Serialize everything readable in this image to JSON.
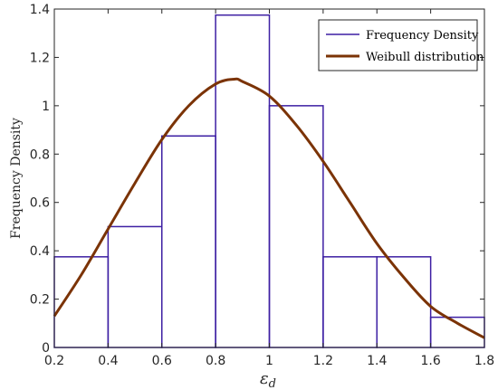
{
  "chart_data": {
    "type": "bar",
    "xlabel": "ε_d",
    "xlabel_main": "ε",
    "xlabel_sub": "d",
    "ylabel": "Frequency Density",
    "xlim": [
      0.2,
      1.8
    ],
    "ylim": [
      0,
      1.4
    ],
    "grid": false,
    "legend_position": "top-right",
    "x_ticks": [
      "0.2",
      "0.4",
      "0.6",
      "0.8",
      "1",
      "1.2",
      "1.4",
      "1.6",
      "1.8"
    ],
    "y_ticks": [
      "0",
      "0.2",
      "0.4",
      "0.6",
      "0.8",
      "1",
      "1.2",
      "1.4"
    ],
    "series": [
      {
        "name": "Frequency Density",
        "kind": "histogram",
        "color": "#3d1fa3",
        "bin_edges": [
          0.2,
          0.4,
          0.6,
          0.8,
          1.0,
          1.2,
          1.4,
          1.6,
          1.8
        ],
        "values": [
          0.375,
          0.5,
          0.875,
          1.375,
          1.0,
          0.375,
          0.375,
          0.125
        ]
      },
      {
        "name": "Weibull distribution",
        "kind": "line",
        "color": "#7b3306",
        "x": [
          0.2,
          0.3,
          0.4,
          0.5,
          0.6,
          0.7,
          0.8,
          0.87,
          0.9,
          1.0,
          1.1,
          1.2,
          1.3,
          1.4,
          1.5,
          1.6,
          1.7,
          1.8
        ],
        "y": [
          0.13,
          0.3,
          0.49,
          0.68,
          0.86,
          1.0,
          1.09,
          1.11,
          1.1,
          1.04,
          0.92,
          0.77,
          0.6,
          0.43,
          0.29,
          0.17,
          0.1,
          0.04
        ]
      }
    ]
  }
}
